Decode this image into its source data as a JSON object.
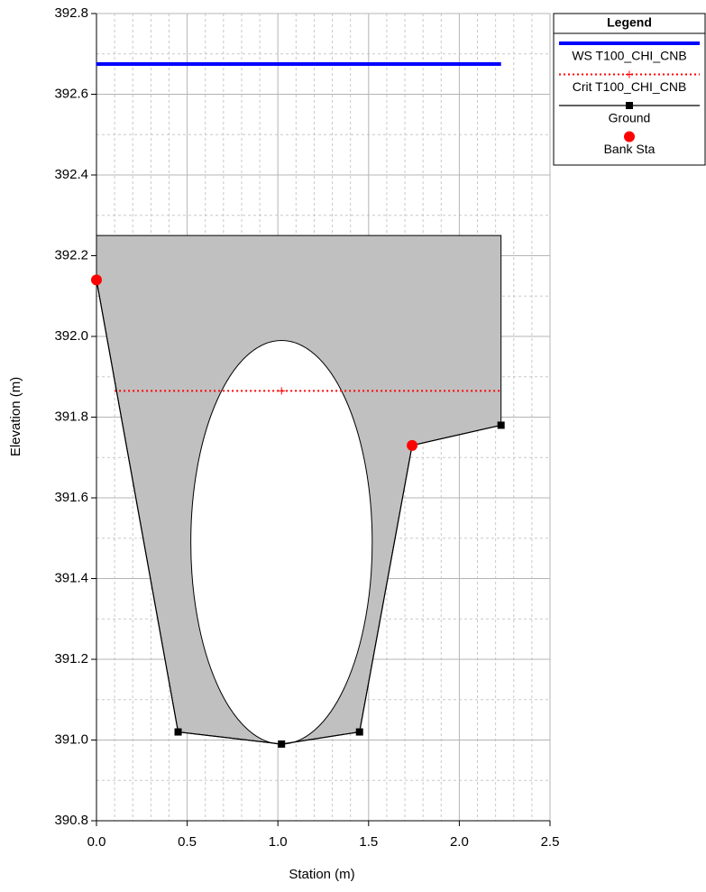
{
  "chart_data": {
    "type": "cross-section",
    "xlabel": "Station (m)",
    "ylabel": "Elevation (m)",
    "xlim": [
      0,
      2.5
    ],
    "ylim": [
      390.8,
      392.8
    ],
    "xticks": [
      {
        "value": 0,
        "label": "0.0"
      },
      0.5,
      {
        "value": 1,
        "label": "1.0"
      },
      1.5,
      {
        "value": 2,
        "label": "2.0"
      },
      2.5
    ],
    "yticks": [
      390.8,
      {
        "value": 391,
        "label": "391.0"
      },
      391.2,
      391.4,
      391.6,
      391.8,
      {
        "value": 392,
        "label": "392.0"
      },
      392.2,
      392.4,
      392.6,
      392.8
    ],
    "grid": true,
    "legend": {
      "title": "Legend",
      "position": "outside-right"
    },
    "deck": {
      "high_chord": 392.25,
      "color": "#c0c0c0"
    },
    "culvert": {
      "center_x": 1.02,
      "center_y": 391.49,
      "span": 1.0,
      "rise": 1.0
    },
    "series": [
      {
        "name": "WS T100_CHI_CNB",
        "color": "#0000ff",
        "style": "solid",
        "x": [
          0,
          2.23
        ],
        "values": [
          392.675,
          392.675
        ]
      },
      {
        "name": "Crit T100_CHI_CNB",
        "color": "#ff0000",
        "style": "dotted",
        "x": [
          0.1,
          1.02,
          2.23
        ],
        "values": [
          391.865,
          391.865,
          391.865
        ]
      },
      {
        "name": "Ground",
        "color": "#000000",
        "style": "line-squares",
        "x": [
          0,
          0.45,
          1.02,
          1.45,
          1.74,
          2.23
        ],
        "values": [
          392.14,
          391.02,
          390.99,
          391.02,
          391.73,
          391.78
        ]
      },
      {
        "name": "Bank Sta",
        "color": "#ff0000",
        "style": "circles",
        "x": [
          0,
          1.74
        ],
        "values": [
          392.14,
          391.73
        ]
      }
    ]
  }
}
